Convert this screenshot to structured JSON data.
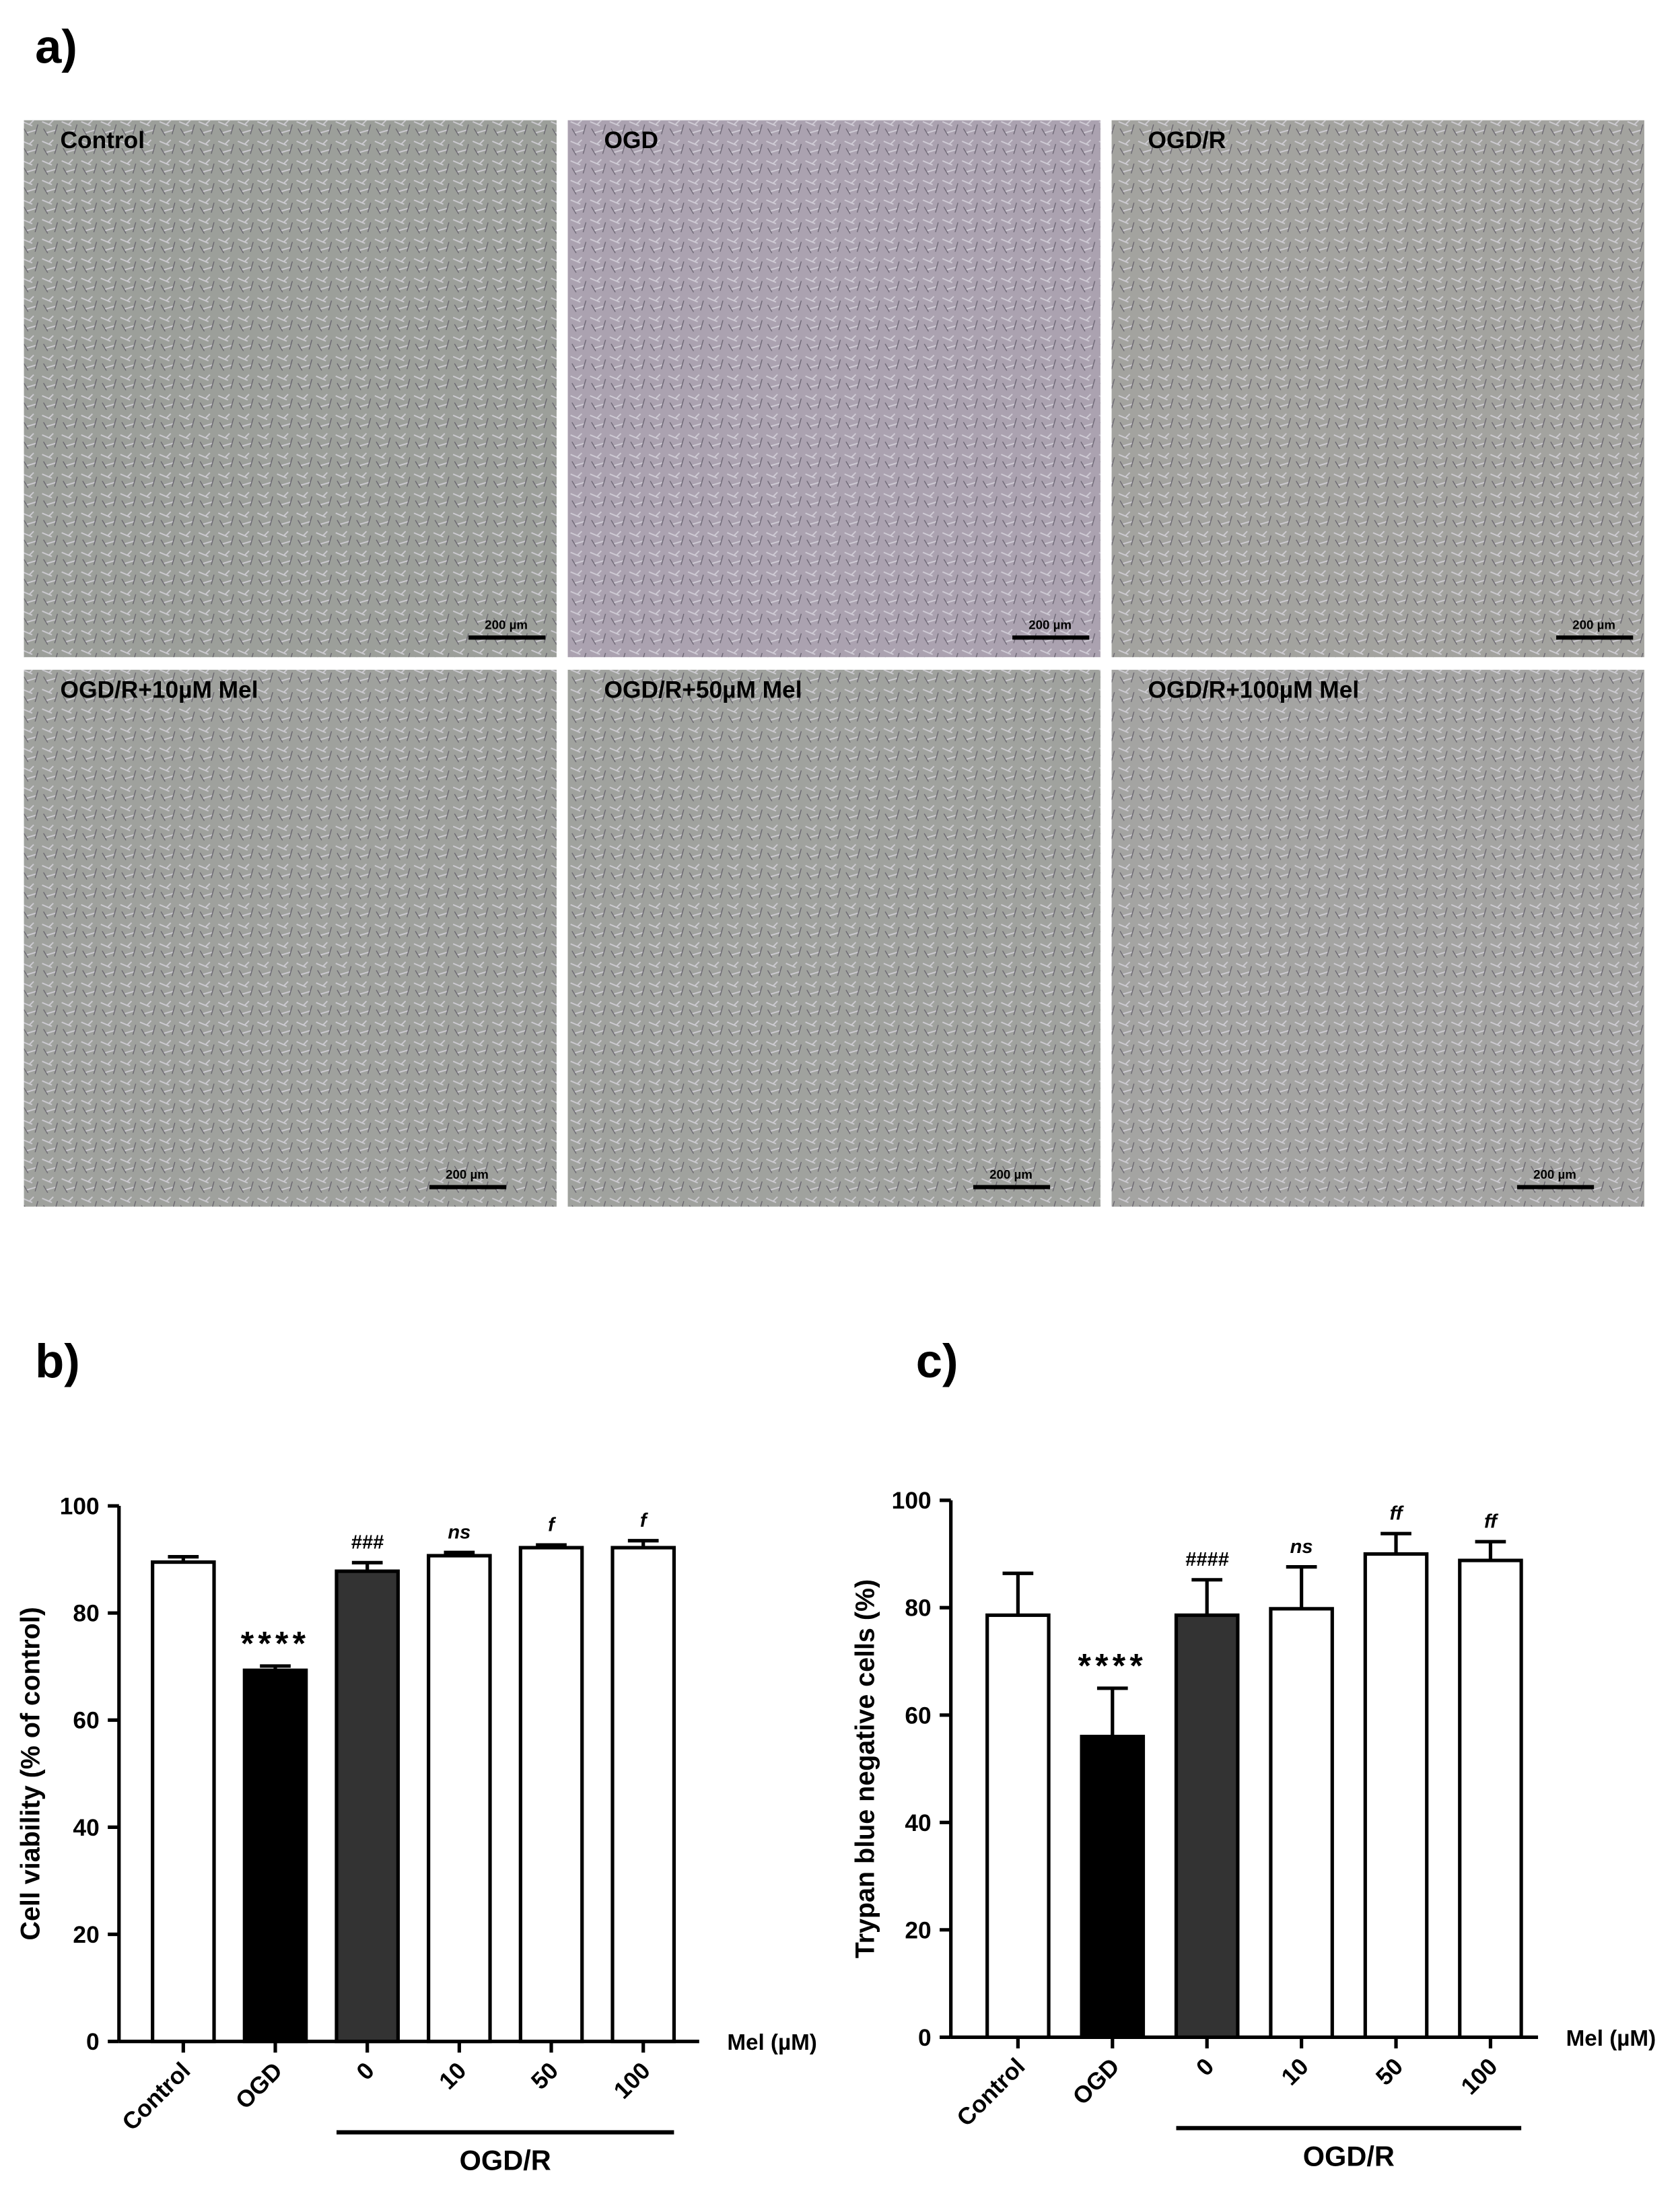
{
  "panel_a": {
    "label": "a)",
    "images": [
      {
        "label": "Control",
        "scale_bar": "200 µm"
      },
      {
        "label": "OGD",
        "scale_bar": "200 µm"
      },
      {
        "label": "OGD/R",
        "scale_bar": "200 µm"
      },
      {
        "label": "OGD/R+10µM Mel",
        "scale_bar": "200 µm"
      },
      {
        "label": "OGD/R+50µM Mel",
        "scale_bar": "200 µm"
      },
      {
        "label": "OGD/R+100µM Mel",
        "scale_bar": "200 µm"
      }
    ]
  },
  "chart_data": [
    {
      "type": "bar",
      "panel_label": "b)",
      "y_label": "Cell viability (% of control)",
      "x_unit_label": "Mel (µM)",
      "group_label": "OGD/R",
      "categories": [
        "Control",
        "OGD",
        "0",
        "10",
        "50",
        "100"
      ],
      "values": [
        89.5,
        69.3,
        87.8,
        90.7,
        92.2,
        92.2
      ],
      "errors": [
        1.0,
        0.8,
        1.6,
        0.6,
        0.5,
        1.3
      ],
      "colors": [
        "#ffffff",
        "#000000",
        "#333333",
        "#ffffff",
        "#ffffff",
        "#ffffff"
      ],
      "annotations": [
        null,
        "****",
        "###",
        "ns",
        "f",
        "f"
      ],
      "ylim": [
        0,
        100
      ],
      "yticks": [
        0,
        20,
        40,
        60,
        80,
        100
      ]
    },
    {
      "type": "bar",
      "panel_label": "c)",
      "y_label": "Trypan blue negative cells (%)",
      "x_unit_label": "Mel (µM)",
      "group_label": "OGD/R",
      "categories": [
        "Control",
        "OGD",
        "0",
        "10",
        "50",
        "100"
      ],
      "values": [
        78.6,
        56.0,
        78.6,
        79.8,
        90.0,
        88.8
      ],
      "errors": [
        7.8,
        9.0,
        6.6,
        7.8,
        3.8,
        3.5
      ],
      "colors": [
        "#ffffff",
        "#000000",
        "#333333",
        "#ffffff",
        "#ffffff",
        "#ffffff"
      ],
      "annotations": [
        null,
        "****",
        "####",
        "ns",
        "ff",
        "ff"
      ],
      "ylim": [
        0,
        100
      ],
      "yticks": [
        0,
        20,
        40,
        60,
        80,
        100
      ]
    }
  ]
}
